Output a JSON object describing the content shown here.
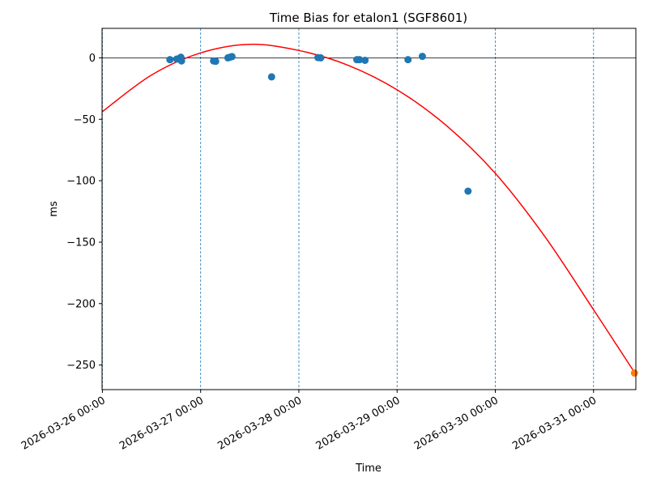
{
  "chart_data": {
    "type": "scatter",
    "title": "Time Bias for etalon1 (SGF8601)",
    "xlabel": "Time",
    "ylabel": "ms",
    "x_ticks": [
      "2026-03-26 00:00",
      "2026-03-27 00:00",
      "2026-03-28 00:00",
      "2026-03-29 00:00",
      "2026-03-30 00:00",
      "2026-03-31 00:00"
    ],
    "y_ticks": [
      0,
      -50,
      -100,
      -150,
      -200,
      -250
    ],
    "xlim": [
      "2026-03-25 23:55",
      "2026-03-31 10:20"
    ],
    "ylim": [
      -270,
      24
    ],
    "grid": "vertical dashed at x ticks",
    "reference_line": 0,
    "colors": {
      "points": "#1f77b4",
      "fit": "#ff0000",
      "prediction": "#ff7f0e",
      "grid": "#1f77b4"
    },
    "series": [
      {
        "type": "scatter",
        "points": [
          {
            "x": "2026-03-26 16:30",
            "y": -1.5
          },
          {
            "x": "2026-03-26 18:10",
            "y": -1.0
          },
          {
            "x": "2026-03-26 18:50",
            "y": -0.5
          },
          {
            "x": "2026-03-26 19:10",
            "y": 0.5
          },
          {
            "x": "2026-03-26 19:20",
            "y": -2.5
          },
          {
            "x": "2026-03-27 03:10",
            "y": -2.5
          },
          {
            "x": "2026-03-27 03:40",
            "y": -2.8
          },
          {
            "x": "2026-03-27 06:40",
            "y": 0.0
          },
          {
            "x": "2026-03-27 07:10",
            "y": 0.5
          },
          {
            "x": "2026-03-27 07:40",
            "y": 1.0
          },
          {
            "x": "2026-03-27 17:20",
            "y": -15.5
          },
          {
            "x": "2026-03-28 04:40",
            "y": 0.2
          },
          {
            "x": "2026-03-28 05:20",
            "y": 0.0
          },
          {
            "x": "2026-03-28 14:10",
            "y": -1.5
          },
          {
            "x": "2026-03-28 14:50",
            "y": -1.5
          },
          {
            "x": "2026-03-28 16:10",
            "y": -2.0
          },
          {
            "x": "2026-03-29 02:40",
            "y": -1.5
          },
          {
            "x": "2026-03-29 06:10",
            "y": 1.2
          },
          {
            "x": "2026-03-29 17:20",
            "y": -108.5
          }
        ]
      },
      {
        "type": "line",
        "points": [
          {
            "x": "2026-03-25 23:55",
            "y": -44
          },
          {
            "x": "2026-03-26 12:00",
            "y": -14
          },
          {
            "x": "2026-03-27 00:00",
            "y": 4
          },
          {
            "x": "2026-03-27 12:00",
            "y": 11
          },
          {
            "x": "2026-03-28 00:00",
            "y": 6
          },
          {
            "x": "2026-03-28 12:00",
            "y": -6
          },
          {
            "x": "2026-03-29 00:00",
            "y": -26
          },
          {
            "x": "2026-03-29 12:00",
            "y": -55
          },
          {
            "x": "2026-03-30 00:00",
            "y": -94
          },
          {
            "x": "2026-03-30 12:00",
            "y": -145
          },
          {
            "x": "2026-03-31 00:00",
            "y": -205
          },
          {
            "x": "2026-03-31 10:00",
            "y": -256
          }
        ]
      },
      {
        "type": "scatter",
        "points": [
          {
            "x": "2026-03-31 10:00",
            "y": -256.5
          }
        ]
      }
    ]
  }
}
